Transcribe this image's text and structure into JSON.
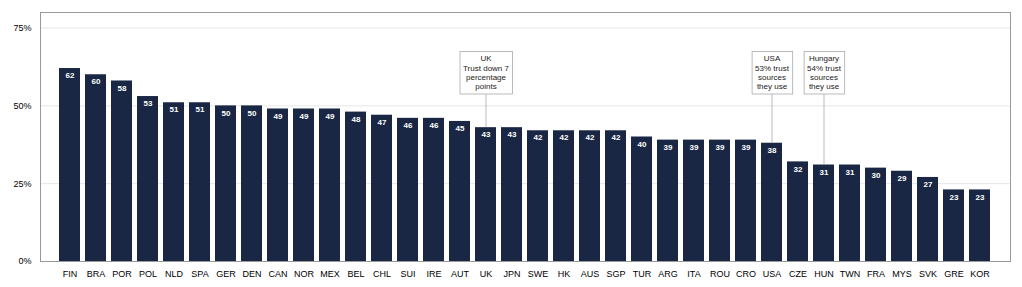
{
  "chart_data": {
    "type": "bar",
    "categories": [
      "FIN",
      "BRA",
      "POR",
      "POL",
      "NLD",
      "SPA",
      "GER",
      "DEN",
      "CAN",
      "NOR",
      "MEX",
      "BEL",
      "CHL",
      "SUI",
      "IRE",
      "AUT",
      "UK",
      "JPN",
      "SWE",
      "HK",
      "AUS",
      "SGP",
      "TUR",
      "ARG",
      "ITA",
      "ROU",
      "CRO",
      "USA",
      "CZE",
      "HUN",
      "TWN",
      "FRA",
      "MYS",
      "SVK",
      "GRE",
      "KOR"
    ],
    "values": [
      62,
      60,
      58,
      53,
      51,
      51,
      50,
      50,
      49,
      49,
      49,
      48,
      47,
      46,
      46,
      45,
      43,
      43,
      42,
      42,
      42,
      42,
      40,
      39,
      39,
      39,
      39,
      38,
      32,
      31,
      31,
      30,
      29,
      27,
      23,
      23
    ],
    "color": "#1a2744",
    "ylim": [
      0,
      80
    ],
    "yticks": [
      {
        "value": 0,
        "label": "0%"
      },
      {
        "value": 25,
        "label": "25%"
      },
      {
        "value": 50,
        "label": "50%"
      },
      {
        "value": 75,
        "label": "75%"
      }
    ],
    "grid": true,
    "data_labels": true,
    "annotations": [
      {
        "category": "UK",
        "text": "UK\nTrust down 7\npercentage\npoints"
      },
      {
        "category": "USA",
        "text": "USA\n53% trust\nsources\nthey use"
      },
      {
        "category": "HUN",
        "text": "Hungary\n54% trust\nsources\nthey use"
      }
    ]
  }
}
